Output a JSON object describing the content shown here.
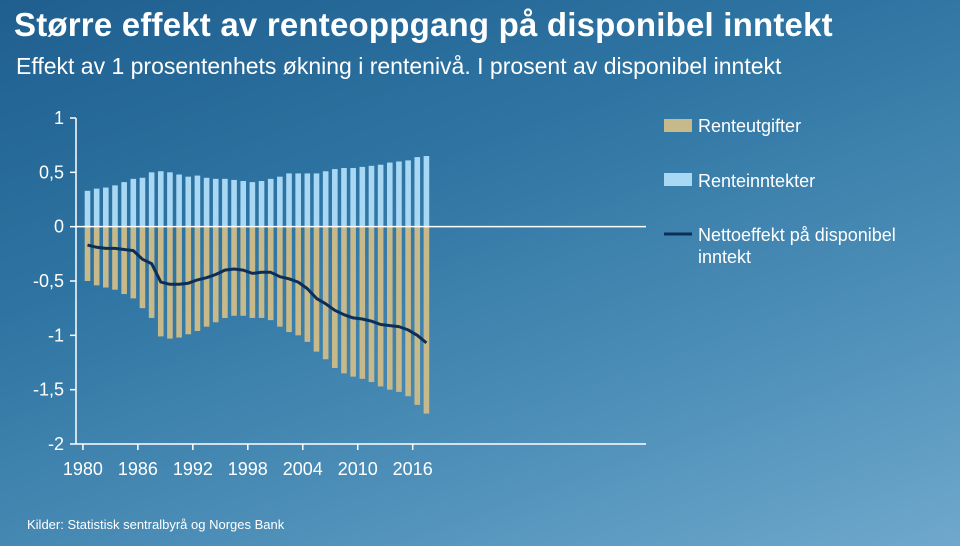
{
  "header": {
    "title": "Større effekt av renteoppgang på disponibel inntekt",
    "subtitle": "Effekt av 1 prosentenhets økning i rentenivå. I prosent av disponibel inntekt"
  },
  "footer": {
    "source": "Kilder: Statistisk sentralbyrå og Norges Bank"
  },
  "chart_data": {
    "type": "bar",
    "x": [
      1980,
      1981,
      1982,
      1983,
      1984,
      1985,
      1986,
      1987,
      1988,
      1989,
      1990,
      1991,
      1992,
      1993,
      1994,
      1995,
      1996,
      1997,
      1998,
      1999,
      2000,
      2001,
      2002,
      2003,
      2004,
      2005,
      2006,
      2007,
      2008,
      2009,
      2010,
      2011,
      2012,
      2013,
      2014,
      2015,
      2016,
      2017
    ],
    "xticks": [
      1980,
      1986,
      1992,
      1998,
      2004,
      2010,
      2016
    ],
    "xtick_labels": [
      "1980",
      "1986",
      "1992",
      "1998",
      "2004",
      "2010",
      "2016"
    ],
    "yticks": [
      1,
      0.5,
      0,
      -0.5,
      -1,
      -1.5,
      -2
    ],
    "ytick_labels": [
      "1",
      "0,5",
      "0",
      "-0,5",
      "-1",
      "-1,5",
      "-2"
    ],
    "ylim": [
      -2,
      1
    ],
    "colors": {
      "expenses": "#c8b98a",
      "income": "#a9d8f5",
      "net": "#0d2f57",
      "axis": "#ffffff"
    },
    "series": [
      {
        "name": "Renteutgifter",
        "kind": "bar",
        "values": [
          -0.5,
          -0.54,
          -0.56,
          -0.58,
          -0.62,
          -0.66,
          -0.75,
          -0.84,
          -1.01,
          -1.03,
          -1.02,
          -0.99,
          -0.96,
          -0.92,
          -0.88,
          -0.84,
          -0.82,
          -0.82,
          -0.84,
          -0.84,
          -0.86,
          -0.92,
          -0.97,
          -1.0,
          -1.06,
          -1.15,
          -1.22,
          -1.3,
          -1.35,
          -1.38,
          -1.4,
          -1.43,
          -1.47,
          -1.5,
          -1.52,
          -1.56,
          -1.64,
          -1.72
        ]
      },
      {
        "name": "Renteinntekter",
        "kind": "bar",
        "values": [
          0.33,
          0.35,
          0.36,
          0.38,
          0.41,
          0.44,
          0.45,
          0.5,
          0.51,
          0.5,
          0.48,
          0.46,
          0.47,
          0.45,
          0.44,
          0.44,
          0.43,
          0.42,
          0.41,
          0.42,
          0.44,
          0.46,
          0.49,
          0.49,
          0.49,
          0.49,
          0.51,
          0.53,
          0.54,
          0.54,
          0.55,
          0.56,
          0.57,
          0.59,
          0.6,
          0.61,
          0.64,
          0.65
        ]
      },
      {
        "name": "Nettoeffekt på disponibel inntekt",
        "kind": "line",
        "values": [
          -0.17,
          -0.19,
          -0.2,
          -0.2,
          -0.21,
          -0.22,
          -0.3,
          -0.34,
          -0.51,
          -0.53,
          -0.53,
          -0.52,
          -0.49,
          -0.47,
          -0.44,
          -0.4,
          -0.39,
          -0.4,
          -0.43,
          -0.42,
          -0.42,
          -0.46,
          -0.48,
          -0.51,
          -0.57,
          -0.66,
          -0.71,
          -0.77,
          -0.81,
          -0.84,
          -0.85,
          -0.87,
          -0.9,
          -0.91,
          -0.92,
          -0.95,
          -1.0,
          -1.07
        ]
      }
    ],
    "legend": [
      {
        "label": "Renteutgifter",
        "series": 0
      },
      {
        "label": "Renteinntekter",
        "series": 1
      },
      {
        "label": "Nettoeffekt på disponibel\ninntekt",
        "series": 2
      }
    ]
  }
}
